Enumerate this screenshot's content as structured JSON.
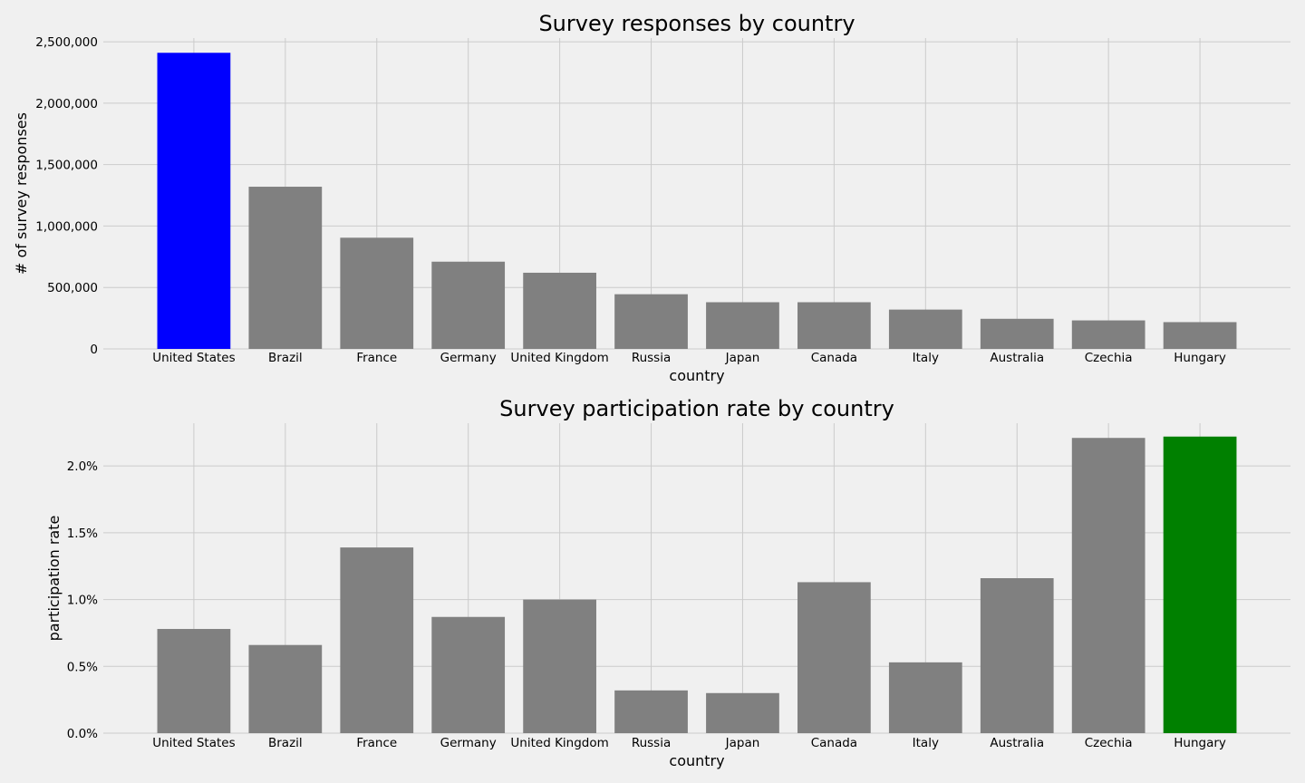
{
  "chart_data": [
    {
      "type": "bar",
      "title": "Survey responses by country",
      "xlabel": "country",
      "ylabel": "# of survey responses",
      "categories": [
        "United States",
        "Brazil",
        "France",
        "Germany",
        "United Kingdom",
        "Russia",
        "Japan",
        "Canada",
        "Italy",
        "Australia",
        "Czechia",
        "Hungary"
      ],
      "values": [
        2410000,
        1320000,
        905000,
        710000,
        620000,
        445000,
        380000,
        380000,
        320000,
        245000,
        232000,
        218000
      ],
      "bar_colors": [
        "#0000ff",
        "#808080",
        "#808080",
        "#808080",
        "#808080",
        "#808080",
        "#808080",
        "#808080",
        "#808080",
        "#808080",
        "#808080",
        "#808080"
      ],
      "ylim": [
        0,
        2530000
      ],
      "yticks": [
        0,
        500000,
        1000000,
        1500000,
        2000000,
        2500000
      ],
      "ytick_labels": [
        "0",
        "500,000",
        "1,000,000",
        "1,500,000",
        "2,000,000",
        "2,500,000"
      ],
      "grid": true
    },
    {
      "type": "bar",
      "title": "Survey participation rate by country",
      "xlabel": "country",
      "ylabel": "participation rate",
      "categories": [
        "United States",
        "Brazil",
        "France",
        "Germany",
        "United Kingdom",
        "Russia",
        "Japan",
        "Canada",
        "Italy",
        "Australia",
        "Czechia",
        "Hungary"
      ],
      "values": [
        0.78,
        0.66,
        1.39,
        0.87,
        1.0,
        0.32,
        0.3,
        1.13,
        0.53,
        1.16,
        2.21,
        2.22
      ],
      "value_unit": "%",
      "bar_colors": [
        "#808080",
        "#808080",
        "#808080",
        "#808080",
        "#808080",
        "#808080",
        "#808080",
        "#808080",
        "#808080",
        "#808080",
        "#808080",
        "#008000"
      ],
      "ylim": [
        0,
        2.32
      ],
      "yticks": [
        0,
        0.5,
        1.0,
        1.5,
        2.0
      ],
      "ytick_labels": [
        "0.0%",
        "0.5%",
        "1.0%",
        "1.5%",
        "2.0%"
      ],
      "grid": true
    }
  ]
}
